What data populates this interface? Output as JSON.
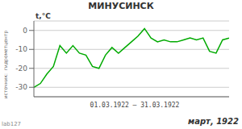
{
  "chart_data": {
    "type": "line",
    "title": "МИНУСИНСК",
    "y_label": "t,°C",
    "x_label": "01.03.1922 – 31.03.1922",
    "footer": "март, 1922",
    "source_text": "источник:  гидрометцентр",
    "watermark": "lab127",
    "x": [
      1,
      2,
      3,
      4,
      5,
      6,
      7,
      8,
      9,
      10,
      11,
      12,
      13,
      14,
      15,
      16,
      17,
      18,
      19,
      20,
      21,
      22,
      23,
      24,
      25,
      26,
      27,
      28,
      29,
      30,
      31
    ],
    "values": [
      -30,
      -28,
      -23,
      -19,
      -8,
      -12,
      -8,
      -12,
      -13,
      -19,
      -20,
      -13,
      -9,
      -12,
      -9,
      -6,
      -3,
      1,
      -4,
      -6,
      -5,
      -6,
      -6,
      -5,
      -4,
      -5,
      -4,
      -11,
      -12,
      -5,
      -4
    ],
    "color": "#00aa00",
    "xlim": [
      1,
      31
    ],
    "xticks": [],
    "ylim": [
      -35,
      5
    ],
    "yticks": [
      0,
      -10,
      -20,
      -30
    ],
    "grid": true,
    "tick_labels": "y"
  }
}
